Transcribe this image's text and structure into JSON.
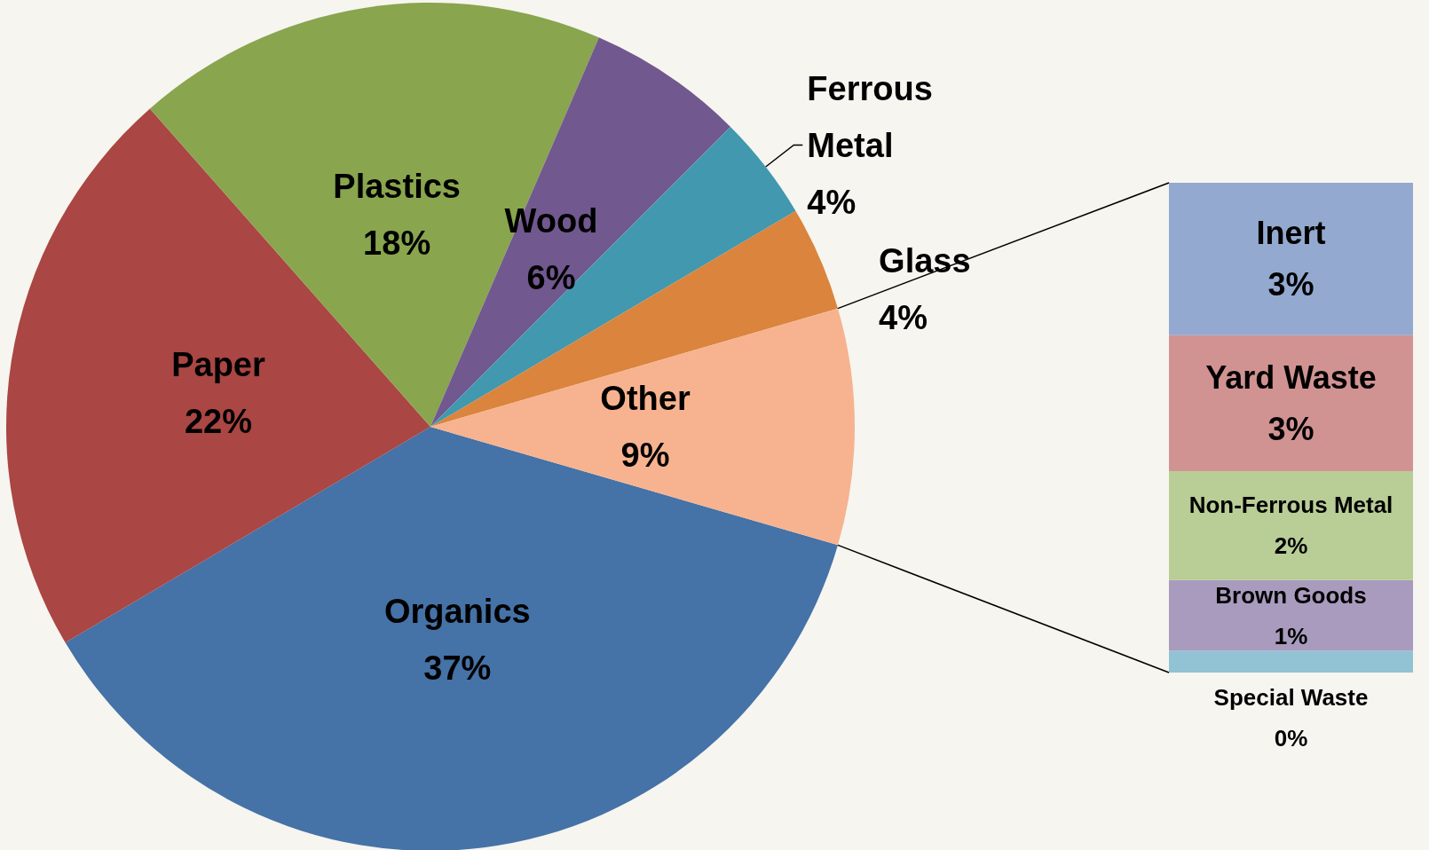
{
  "chart_data": [
    {
      "type": "pie",
      "categories": [
        "Organics",
        "Paper",
        "Plastics",
        "Wood",
        "Ferrous Metal",
        "Glass",
        "Other"
      ],
      "values": [
        37,
        22,
        18,
        6,
        4,
        4,
        9
      ],
      "colors": [
        "#4572a7",
        "#aa4643",
        "#89a54e",
        "#71588f",
        "#4198af",
        "#db843d",
        "#f7b38f"
      ],
      "value_labels": [
        "37%",
        "22%",
        "18%",
        "6%",
        "4%",
        "4%",
        "9%"
      ],
      "legend": false
    },
    {
      "type": "bar",
      "stacked": true,
      "categories": [
        null
      ],
      "legend": false,
      "series": [
        {
          "name": "Special Waste",
          "color": "#91c3d5",
          "values": [
            0.4
          ],
          "value_labels": [
            "0%"
          ]
        },
        {
          "name": "Brown Goods",
          "color": "#a99bbd",
          "values": [
            1.3
          ],
          "value_labels": [
            "1%"
          ]
        },
        {
          "name": "Non-Ferrous Metal",
          "color": "#b9cd96",
          "values": [
            2.0
          ],
          "value_labels": [
            "2%"
          ]
        },
        {
          "name": "Yard Waste",
          "color": "#d19392",
          "values": [
            2.5
          ],
          "value_labels": [
            "3%"
          ]
        },
        {
          "name": "Inert",
          "color": "#93a9cf",
          "values": [
            2.8
          ],
          "value_labels": [
            "3%"
          ]
        }
      ]
    }
  ]
}
